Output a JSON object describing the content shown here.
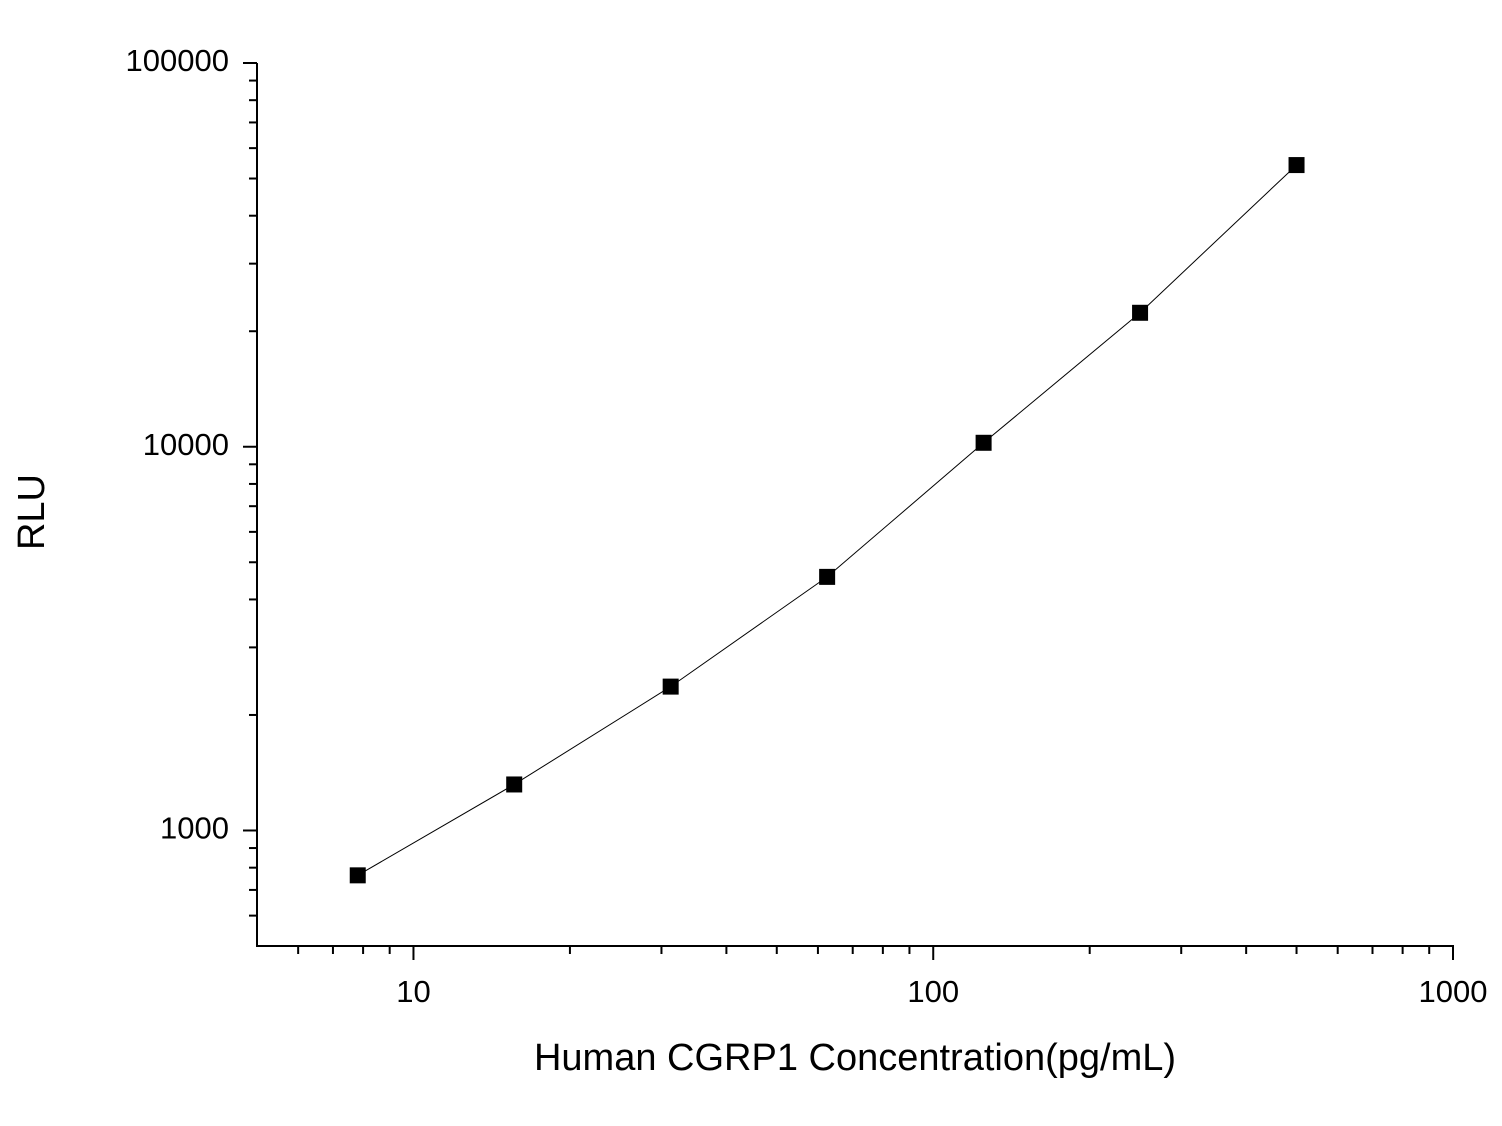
{
  "chart_data": {
    "type": "line",
    "x_label": "Human CGRP1 Concentration(pg/mL)",
    "y_label": "RLU",
    "x": [
      7.8125,
      15.625,
      31.25,
      62.5,
      125,
      250,
      500
    ],
    "series": [
      {
        "color": "#000000",
        "values": [
          764,
          1318,
          2371,
          4580,
          10240,
          22340,
          54200
        ]
      }
    ],
    "xlim": [
      5,
      1000
    ],
    "ylim": [
      500,
      100000
    ],
    "xticks": [
      10,
      100,
      1000
    ],
    "yticks": [
      1000,
      10000,
      100000
    ],
    "xminor": [
      6,
      7,
      8,
      9,
      20,
      30,
      40,
      50,
      60,
      70,
      80,
      90,
      200,
      300,
      400,
      500,
      600,
      700,
      800,
      900
    ],
    "yminor": [
      600,
      700,
      800,
      900,
      2000,
      3000,
      4000,
      5000,
      6000,
      7000,
      8000,
      9000,
      20000,
      30000,
      40000,
      50000,
      60000,
      70000,
      80000,
      90000
    ],
    "xscale": "log",
    "yscale": "log",
    "grid": false
  }
}
